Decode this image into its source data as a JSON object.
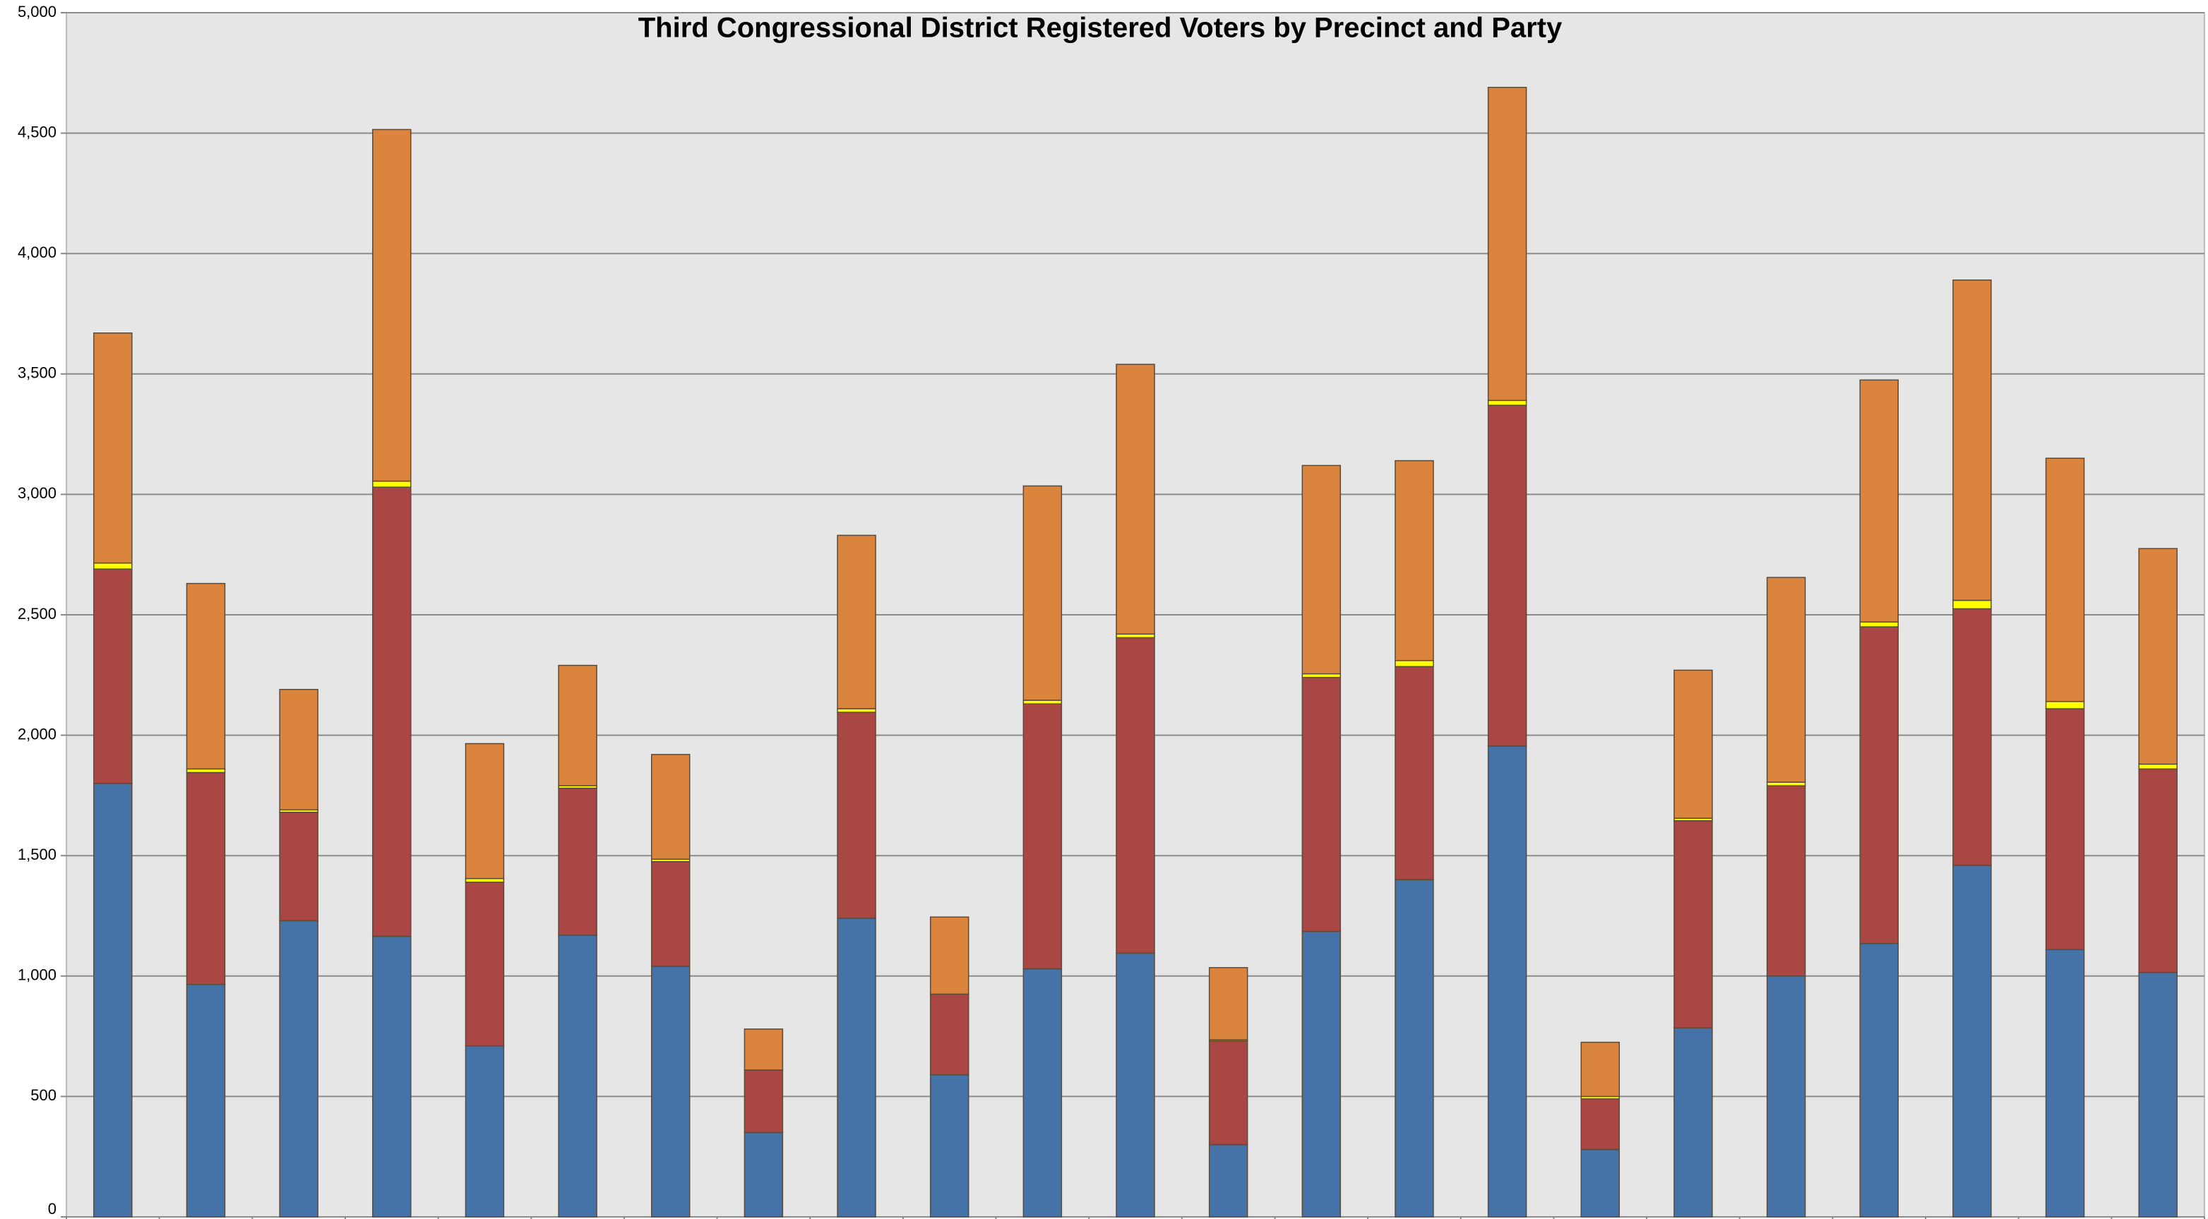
{
  "chart_data": {
    "type": "stacked_bar",
    "title": "Third Congressional District Registered Voters by Precinct and Party",
    "categories": [
      null,
      null,
      null,
      null,
      null,
      null,
      null,
      null,
      null,
      null,
      null,
      null,
      null,
      null,
      null,
      null,
      null,
      null,
      null,
      null,
      null,
      null,
      null
    ],
    "series": [
      {
        "color": "#4572a7",
        "values": [
          1800,
          965,
          1230,
          1165,
          710,
          1170,
          1040,
          350,
          1240,
          590,
          1030,
          1095,
          300,
          1185,
          1400,
          1955,
          280,
          785,
          1000,
          1135,
          1460,
          1110,
          1015
        ]
      },
      {
        "color": "#aa4643",
        "values": [
          890,
          880,
          450,
          1865,
          680,
          610,
          435,
          260,
          855,
          335,
          1100,
          1310,
          430,
          1055,
          885,
          1415,
          210,
          860,
          790,
          1315,
          1065,
          1000,
          845
        ]
      },
      {
        "color": "#ffff00",
        "values": [
          25,
          15,
          10,
          25,
          15,
          10,
          10,
          0,
          15,
          0,
          15,
          15,
          5,
          15,
          25,
          20,
          10,
          10,
          15,
          20,
          35,
          30,
          20
        ]
      },
      {
        "color": "#db843d",
        "values": [
          955,
          770,
          500,
          1460,
          560,
          500,
          435,
          170,
          720,
          320,
          890,
          1120,
          300,
          865,
          830,
          1300,
          225,
          615,
          850,
          1005,
          1330,
          1010,
          895
        ]
      }
    ],
    "ylim": [
      0,
      5000
    ],
    "yticks": [
      0,
      500,
      {
        "value": 1000,
        "label": "1,000"
      },
      {
        "value": 1500,
        "label": "1,500"
      },
      {
        "value": 2000,
        "label": "2,000"
      },
      {
        "value": 2500,
        "label": "2,500"
      },
      {
        "value": 3000,
        "label": "3,000"
      },
      {
        "value": 3500,
        "label": "3,500"
      },
      {
        "value": 4000,
        "label": "4,000"
      },
      {
        "value": 4500,
        "label": "4,500"
      },
      {
        "value": 5000,
        "label": "5,000"
      }
    ],
    "grid": true
  }
}
